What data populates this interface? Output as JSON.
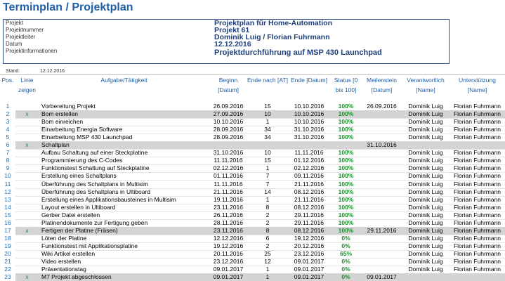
{
  "header": {
    "title": "Terminplan / Projektplan"
  },
  "info": {
    "labels": [
      "Projekt",
      "Projektnummer",
      "Projektleiter",
      "Datum",
      "Projektinformationen"
    ],
    "values": [
      "Projektplan für Home-Automation",
      "Projekt 61",
      "Dominik Luig / Florian Fuhrmann",
      "12.12.2016",
      "Projektdurchführung auf MSP 430 Launchpad"
    ]
  },
  "stand": {
    "label": "Stand:",
    "value": "12.12.2016"
  },
  "table": {
    "columns": [
      "Pos.",
      "Linie zeigen",
      "Aufgabe/Tätigkeit",
      "Beginn [Datum]",
      "Ende nach [AT]",
      "Ende [Datum]",
      "Status [0 bis 100]",
      "Meilenstein [Datum]",
      "Verantwortlich [Name]",
      "Unterstützung [Name]"
    ],
    "rows": [
      [
        "1",
        "",
        "Vorbereitung Projekt",
        "26.09.2016",
        "15",
        "10.10.2016",
        "100%",
        "26.09.2016",
        "Dominik Luig",
        "Florian Fuhrmann"
      ],
      [
        "2",
        "x",
        "Bom erstellen",
        "27.09.2016",
        "10",
        "10.10.2016",
        "100%",
        "",
        "Dominik Luig",
        "Florian Fuhrmann"
      ],
      [
        "3",
        "",
        "Bom einreichen",
        "10.10.2016",
        "1",
        "10.10.2016",
        "100%",
        "",
        "Dominik Luig",
        "Florian Fuhrmann"
      ],
      [
        "4",
        "",
        "Einarbeitung Energia Software",
        "28.09.2016",
        "34",
        "31.10.2016",
        "100%",
        "",
        "Dominik Luig",
        "Florian Fuhrmann"
      ],
      [
        "5",
        "",
        "Einarbeitung MSP 430 Launchpad",
        "28.09.2016",
        "34",
        "31.10.2016",
        "100%",
        "",
        "Dominik Luig",
        "Florian Fuhrmann"
      ],
      [
        "6",
        "x",
        "Schaltplan",
        "",
        "",
        "",
        "",
        "31.10.2016",
        "",
        ""
      ],
      [
        "7",
        "",
        "Aufbau Schaltung auf einer Steckplatine",
        "31.10.2016",
        "10",
        "11.11.2016",
        "100%",
        "",
        "Dominik Luig",
        "Florian Fuhrmann"
      ],
      [
        "8",
        "",
        "Programmierung des C-Codes",
        "11.11.2016",
        "15",
        "01.12.2016",
        "100%",
        "",
        "Dominik Luig",
        "Florian Fuhrmann"
      ],
      [
        "9",
        "",
        "Funktionstest Schaltung auf Steckplatine",
        "02.12.2016",
        "1",
        "02.12.2016",
        "100%",
        "",
        "Dominik Luig",
        "Florian Fuhrmann"
      ],
      [
        "10",
        "",
        "Erstellung eines Schaltplans",
        "01.11.2016",
        "7",
        "09.11.2016",
        "100%",
        "",
        "Dominik Luig",
        "Florian Fuhrmann"
      ],
      [
        "11",
        "",
        "Überführung des Schaltplans in Multisim",
        "11.11.2016",
        "7",
        "21.11.2016",
        "100%",
        "",
        "Dominik Luig",
        "Florian Fuhrmann"
      ],
      [
        "12",
        "",
        "Überführung des Schaltplans in Ultiboard",
        "21.11.2016",
        "14",
        "08.12.2016",
        "100%",
        "",
        "Dominik Luig",
        "Florian Fuhrmann"
      ],
      [
        "13",
        "",
        "Erstellung eines Applikationsbausteines in Multisim",
        "19.11.2016",
        "1",
        "21.11.2016",
        "100%",
        "",
        "Dominik Luig",
        "Florian Fuhrmann"
      ],
      [
        "14",
        "",
        "Layout erstellen in Ultiboard",
        "23.11.2016",
        "8",
        "08.12.2016",
        "100%",
        "",
        "Dominik Luig",
        "Florian Fuhrmann"
      ],
      [
        "15",
        "",
        "Gerber Datei erstellen",
        "26.11.2016",
        "2",
        "29.11.2016",
        "100%",
        "",
        "Dominik Luig",
        "Florian Fuhrmann"
      ],
      [
        "16",
        "",
        "Platinendokumente zur Fertigung geben",
        "28.11.2016",
        "2",
        "29.11.2016",
        "100%",
        "",
        "Dominik Luig",
        "Florian Fuhrmann"
      ],
      [
        "17",
        "x",
        "Fertigen der Platine (Fräsen)",
        "23.11.2016",
        "8",
        "08.12.2016",
        "100%",
        "29.11.2016",
        "Dominik Luig",
        "Florian Fuhrmann"
      ],
      [
        "18",
        "",
        "Löten der Platine",
        "12.12.2016",
        "6",
        "19.12.2016",
        "0%",
        "",
        "Dominik Luig",
        "Florian Fuhrmann"
      ],
      [
        "19",
        "",
        "Funktionstest mit Applikationsplatine",
        "19.12.2016",
        "2",
        "20.12.2016",
        "0%",
        "",
        "Dominik Luig",
        "Florian Fuhrmann"
      ],
      [
        "20",
        "",
        "Wiki Artikel erstellen",
        "20.11.2016",
        "25",
        "23.12.2016",
        "65%",
        "",
        "Dominik Luig",
        "Florian Fuhrmann"
      ],
      [
        "21",
        "",
        "Video erstellen",
        "23.12.2016",
        "12",
        "09.01.2017",
        "0%",
        "",
        "Dominik Luig",
        "Florian Fuhrmann"
      ],
      [
        "22",
        "",
        "Präsentationstag",
        "09.01.2017",
        "1",
        "09.01.2017",
        "0%",
        "",
        "Dominik Luig",
        "Florian Fuhrmann"
      ],
      [
        "23",
        "x",
        "M7 Projekt abgeschlossen",
        "09.01.2017",
        "1",
        "09.01.2017",
        "0%",
        "09.01.2017",
        "",
        ""
      ]
    ]
  }
}
